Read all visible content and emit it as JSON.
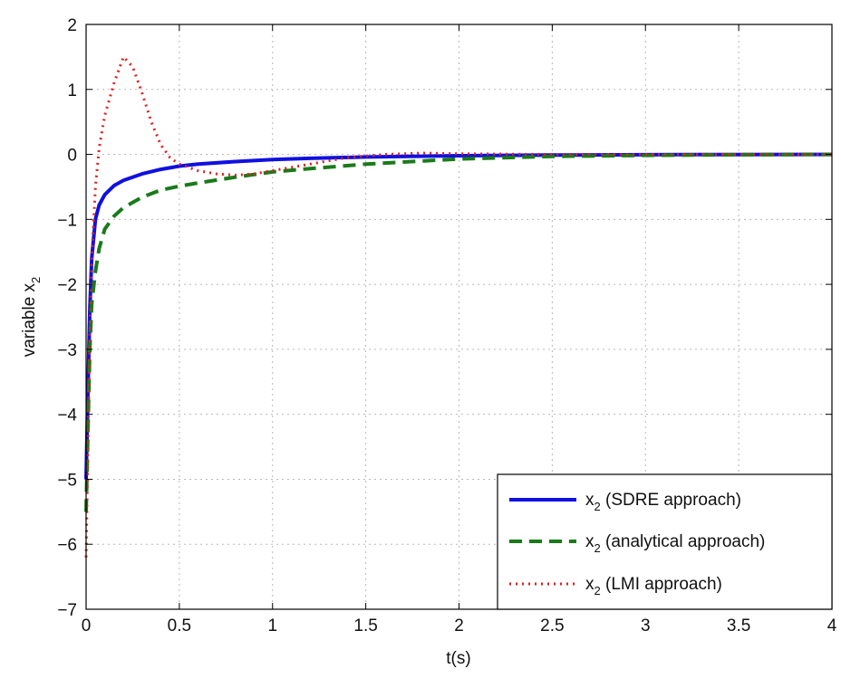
{
  "chart_data": {
    "type": "line",
    "title": "",
    "xlabel": "t(s)",
    "ylabel": {
      "base": "variable x",
      "sub": "2"
    },
    "xlim": [
      0,
      4
    ],
    "ylim": [
      -7,
      2
    ],
    "xticks": [
      0,
      0.5,
      1,
      1.5,
      2,
      2.5,
      3,
      3.5,
      4
    ],
    "xtick_labels": [
      "0",
      "0.5",
      "1",
      "1.5",
      "2",
      "2.5",
      "3",
      "3.5",
      "4"
    ],
    "yticks": [
      -7,
      -6,
      -5,
      -4,
      -3,
      -2,
      -1,
      0,
      1,
      2
    ],
    "ytick_labels": [
      "−7",
      "−6",
      "−5",
      "−4",
      "−3",
      "−2",
      "−1",
      "0",
      "1",
      "2"
    ],
    "grid": true,
    "legend_position": "bottom-right",
    "series": [
      {
        "name": {
          "base": "x",
          "sub": "2",
          "text": " (SDRE approach)"
        },
        "color": "#1010e0",
        "style": "solid",
        "x": [
          0,
          0.01,
          0.02,
          0.03,
          0.05,
          0.07,
          0.1,
          0.15,
          0.2,
          0.3,
          0.4,
          0.5,
          0.6,
          0.8,
          1.0,
          1.2,
          1.5,
          2.0,
          2.5,
          3.0,
          3.5,
          4.0
        ],
        "y": [
          -5.0,
          -3.6,
          -2.4,
          -1.6,
          -1.0,
          -0.78,
          -0.62,
          -0.48,
          -0.4,
          -0.3,
          -0.23,
          -0.18,
          -0.15,
          -0.11,
          -0.08,
          -0.06,
          -0.04,
          -0.02,
          -0.01,
          -0.005,
          -0.002,
          0
        ]
      },
      {
        "name": {
          "base": "x",
          "sub": "2",
          "text": " (analytical approach)"
        },
        "color": "#1a7a1a",
        "style": "dashed",
        "x": [
          0,
          0.01,
          0.02,
          0.03,
          0.05,
          0.07,
          0.1,
          0.15,
          0.2,
          0.3,
          0.4,
          0.5,
          0.6,
          0.8,
          1.0,
          1.2,
          1.5,
          2.0,
          2.5,
          3.0,
          3.5,
          4.0
        ],
        "y": [
          -5.5,
          -4.2,
          -3.0,
          -2.3,
          -1.8,
          -1.45,
          -1.15,
          -0.95,
          -0.82,
          -0.66,
          -0.55,
          -0.49,
          -0.44,
          -0.35,
          -0.27,
          -0.22,
          -0.15,
          -0.07,
          -0.03,
          -0.015,
          -0.005,
          0
        ]
      },
      {
        "name": {
          "base": "x",
          "sub": "2",
          "text": " (LMI approach)"
        },
        "color": "#e02020",
        "style": "dotted",
        "x": [
          0,
          0.01,
          0.02,
          0.03,
          0.05,
          0.07,
          0.1,
          0.15,
          0.2,
          0.25,
          0.3,
          0.35,
          0.4,
          0.45,
          0.5,
          0.55,
          0.6,
          0.7,
          0.8,
          0.9,
          1.0,
          1.2,
          1.4,
          1.6,
          1.8,
          2.0,
          2.5,
          3.0,
          3.5,
          4.0
        ],
        "y": [
          -6.2,
          -4.5,
          -2.8,
          -1.6,
          -0.5,
          0.1,
          0.6,
          1.1,
          1.5,
          1.35,
          0.95,
          0.5,
          0.15,
          -0.05,
          -0.15,
          -0.2,
          -0.25,
          -0.3,
          -0.32,
          -0.3,
          -0.25,
          -0.15,
          -0.05,
          0.0,
          0.02,
          0.01,
          0.0,
          0.0,
          0.0,
          0
        ]
      }
    ]
  }
}
